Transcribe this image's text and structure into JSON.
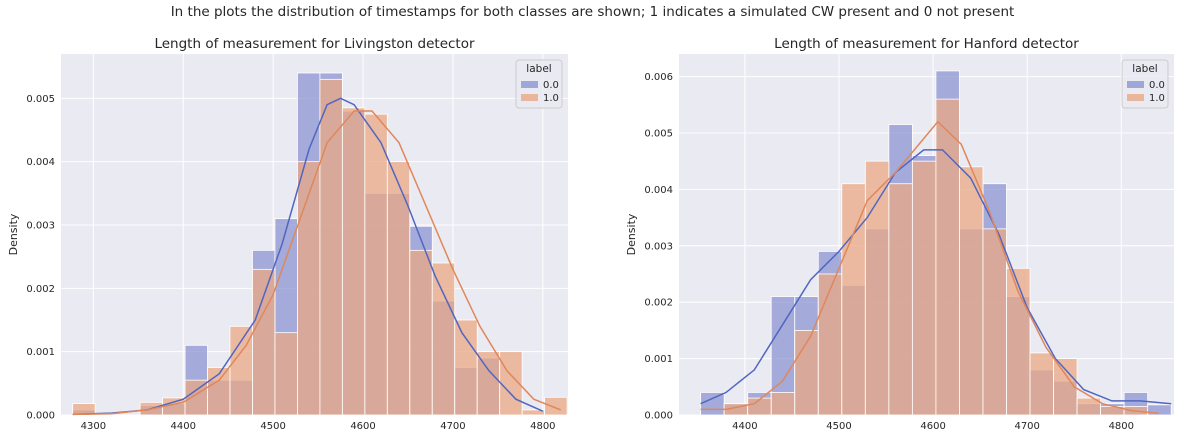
{
  "figure": {
    "suptitle": "In the plots the distribution of timestamps for both classes are shown; 1 indicates a simulated CW present and 0 not present"
  },
  "colors": {
    "background": "#eaeaf2",
    "grid": "#ffffff",
    "class0": "#8c96d2",
    "class1": "#e9a884",
    "overlap": "#a2939b",
    "kde0": "#5166c0",
    "kde1": "#e0875a"
  },
  "chart_data": [
    {
      "type": "histogram",
      "title": "Length of measurement for Livingston detector",
      "xlabel": "",
      "ylabel": "Density",
      "xlim": [
        4264,
        4828
      ],
      "ylim": [
        0,
        0.0057
      ],
      "xticks": [
        4300,
        4400,
        4500,
        4600,
        4700,
        4800
      ],
      "yticks": [
        0,
        0.001,
        0.002,
        0.003,
        0.004,
        0.005
      ],
      "ytick_labels": [
        "0.000",
        "0.001",
        "0.002",
        "0.003",
        "0.004",
        "0.005"
      ],
      "grid": true,
      "legend": {
        "title": "label",
        "position": "top-right",
        "entries": [
          "0.0",
          "1.0"
        ]
      },
      "bin_edges": [
        4277,
        4302,
        4327,
        4352,
        4377,
        4402,
        4427,
        4452,
        4477,
        4502,
        4527,
        4552,
        4577,
        4602,
        4627,
        4652,
        4677,
        4702,
        4727,
        4752,
        4777,
        4802,
        4827
      ],
      "series": [
        {
          "name": "0.0",
          "values": [
            8e-05,
            0,
            0,
            0.00015,
            0.00018,
            0.0011,
            0.00055,
            0.00055,
            0.0026,
            0.0031,
            0.0054,
            0.0054,
            0.0048,
            0.0035,
            0.0035,
            0.00298,
            0.0018,
            0.00075,
            0.0009,
            0,
            0,
            0
          ],
          "kde": [
            [
              4277,
              1e-05
            ],
            [
              4320,
              3e-05
            ],
            [
              4360,
              8e-05
            ],
            [
              4400,
              0.00025
            ],
            [
              4440,
              0.00065
            ],
            [
              4480,
              0.0015
            ],
            [
              4510,
              0.0027
            ],
            [
              4540,
              0.0042
            ],
            [
              4560,
              0.0049
            ],
            [
              4575,
              0.005
            ],
            [
              4590,
              0.0049
            ],
            [
              4620,
              0.0043
            ],
            [
              4650,
              0.0033
            ],
            [
              4680,
              0.0022
            ],
            [
              4710,
              0.0013
            ],
            [
              4740,
              0.0007
            ],
            [
              4770,
              0.00025
            ],
            [
              4800,
              6e-05
            ]
          ]
        },
        {
          "name": "1.0",
          "values": [
            0.00018,
            0,
            0,
            0.0002,
            0.00027,
            0.00055,
            0.00075,
            0.0014,
            0.0023,
            0.0013,
            0.004,
            0.0053,
            0.00485,
            0.00475,
            0.004,
            0.0026,
            0.0024,
            0.0015,
            0.001,
            0.001,
            8e-05,
            0.00028
          ],
          "kde": [
            [
              4277,
              1e-05
            ],
            [
              4320,
              2e-05
            ],
            [
              4360,
              8e-05
            ],
            [
              4400,
              0.0002
            ],
            [
              4440,
              0.00055
            ],
            [
              4470,
              0.0011
            ],
            [
              4500,
              0.0019
            ],
            [
              4530,
              0.0031
            ],
            [
              4560,
              0.0043
            ],
            [
              4590,
              0.0048
            ],
            [
              4610,
              0.0048
            ],
            [
              4640,
              0.0043
            ],
            [
              4670,
              0.0033
            ],
            [
              4700,
              0.0023
            ],
            [
              4730,
              0.0014
            ],
            [
              4760,
              0.0007
            ],
            [
              4790,
              0.00025
            ],
            [
              4820,
              8e-05
            ]
          ]
        }
      ]
    },
    {
      "type": "histogram",
      "title": "Length of measurement for Hanford detector",
      "xlabel": "",
      "ylabel": "Density",
      "xlim": [
        4330,
        4856
      ],
      "ylim": [
        0,
        0.0064
      ],
      "xticks": [
        4400,
        4500,
        4600,
        4700,
        4800
      ],
      "yticks": [
        0,
        0.001,
        0.002,
        0.003,
        0.004,
        0.005,
        0.006
      ],
      "ytick_labels": [
        "0.000",
        "0.001",
        "0.002",
        "0.003",
        "0.004",
        "0.005",
        "0.006"
      ],
      "grid": true,
      "legend": {
        "title": "label",
        "position": "top-right",
        "entries": [
          "0.0",
          "1.0"
        ]
      },
      "bin_edges": [
        4353,
        4378,
        4403,
        4428,
        4453,
        4478,
        4503,
        4528,
        4553,
        4578,
        4603,
        4628,
        4653,
        4678,
        4703,
        4728,
        4753,
        4778,
        4803,
        4828,
        4853
      ],
      "series": [
        {
          "name": "0.0",
          "values": [
            0.0004,
            0.0002,
            0.0004,
            0.0021,
            0.0021,
            0.0029,
            0.0023,
            0.0033,
            0.00515,
            0.0046,
            0.0061,
            0.0033,
            0.0041,
            0.0021,
            0.0008,
            0.0006,
            0.0002,
            0.0002,
            0.0004,
            0.00018
          ],
          "kde": [
            [
              4353,
              0.0002
            ],
            [
              4380,
              0.0004
            ],
            [
              4410,
              0.0008
            ],
            [
              4440,
              0.0016
            ],
            [
              4470,
              0.0024
            ],
            [
              4500,
              0.0029
            ],
            [
              4530,
              0.0035
            ],
            [
              4560,
              0.0043
            ],
            [
              4590,
              0.0047
            ],
            [
              4610,
              0.0047
            ],
            [
              4640,
              0.0042
            ],
            [
              4670,
              0.0032
            ],
            [
              4700,
              0.0019
            ],
            [
              4730,
              0.001
            ],
            [
              4760,
              0.00045
            ],
            [
              4790,
              0.00025
            ],
            [
              4820,
              0.00025
            ],
            [
              4853,
              0.0002
            ]
          ]
        },
        {
          "name": "1.0",
          "values": [
            0,
            0.0002,
            0.0003,
            0.0004,
            0.0015,
            0.0025,
            0.0041,
            0.0045,
            0.0041,
            0.0045,
            0.0056,
            0.0044,
            0.0033,
            0.0026,
            0.0011,
            0.001,
            0.0003,
            0.00015,
            0.00015,
            0
          ],
          "kde": [
            [
              4353,
              0.0001
            ],
            [
              4380,
              0.0001
            ],
            [
              4410,
              0.0002
            ],
            [
              4440,
              0.0006
            ],
            [
              4470,
              0.0014
            ],
            [
              4500,
              0.0026
            ],
            [
              4530,
              0.0038
            ],
            [
              4560,
              0.0043
            ],
            [
              4590,
              0.0049
            ],
            [
              4605,
              0.0052
            ],
            [
              4630,
              0.0048
            ],
            [
              4660,
              0.0036
            ],
            [
              4690,
              0.0022
            ],
            [
              4720,
              0.0012
            ],
            [
              4750,
              0.0005
            ],
            [
              4780,
              0.0002
            ],
            [
              4810,
              8e-05
            ],
            [
              4840,
              3e-05
            ]
          ]
        }
      ]
    }
  ]
}
